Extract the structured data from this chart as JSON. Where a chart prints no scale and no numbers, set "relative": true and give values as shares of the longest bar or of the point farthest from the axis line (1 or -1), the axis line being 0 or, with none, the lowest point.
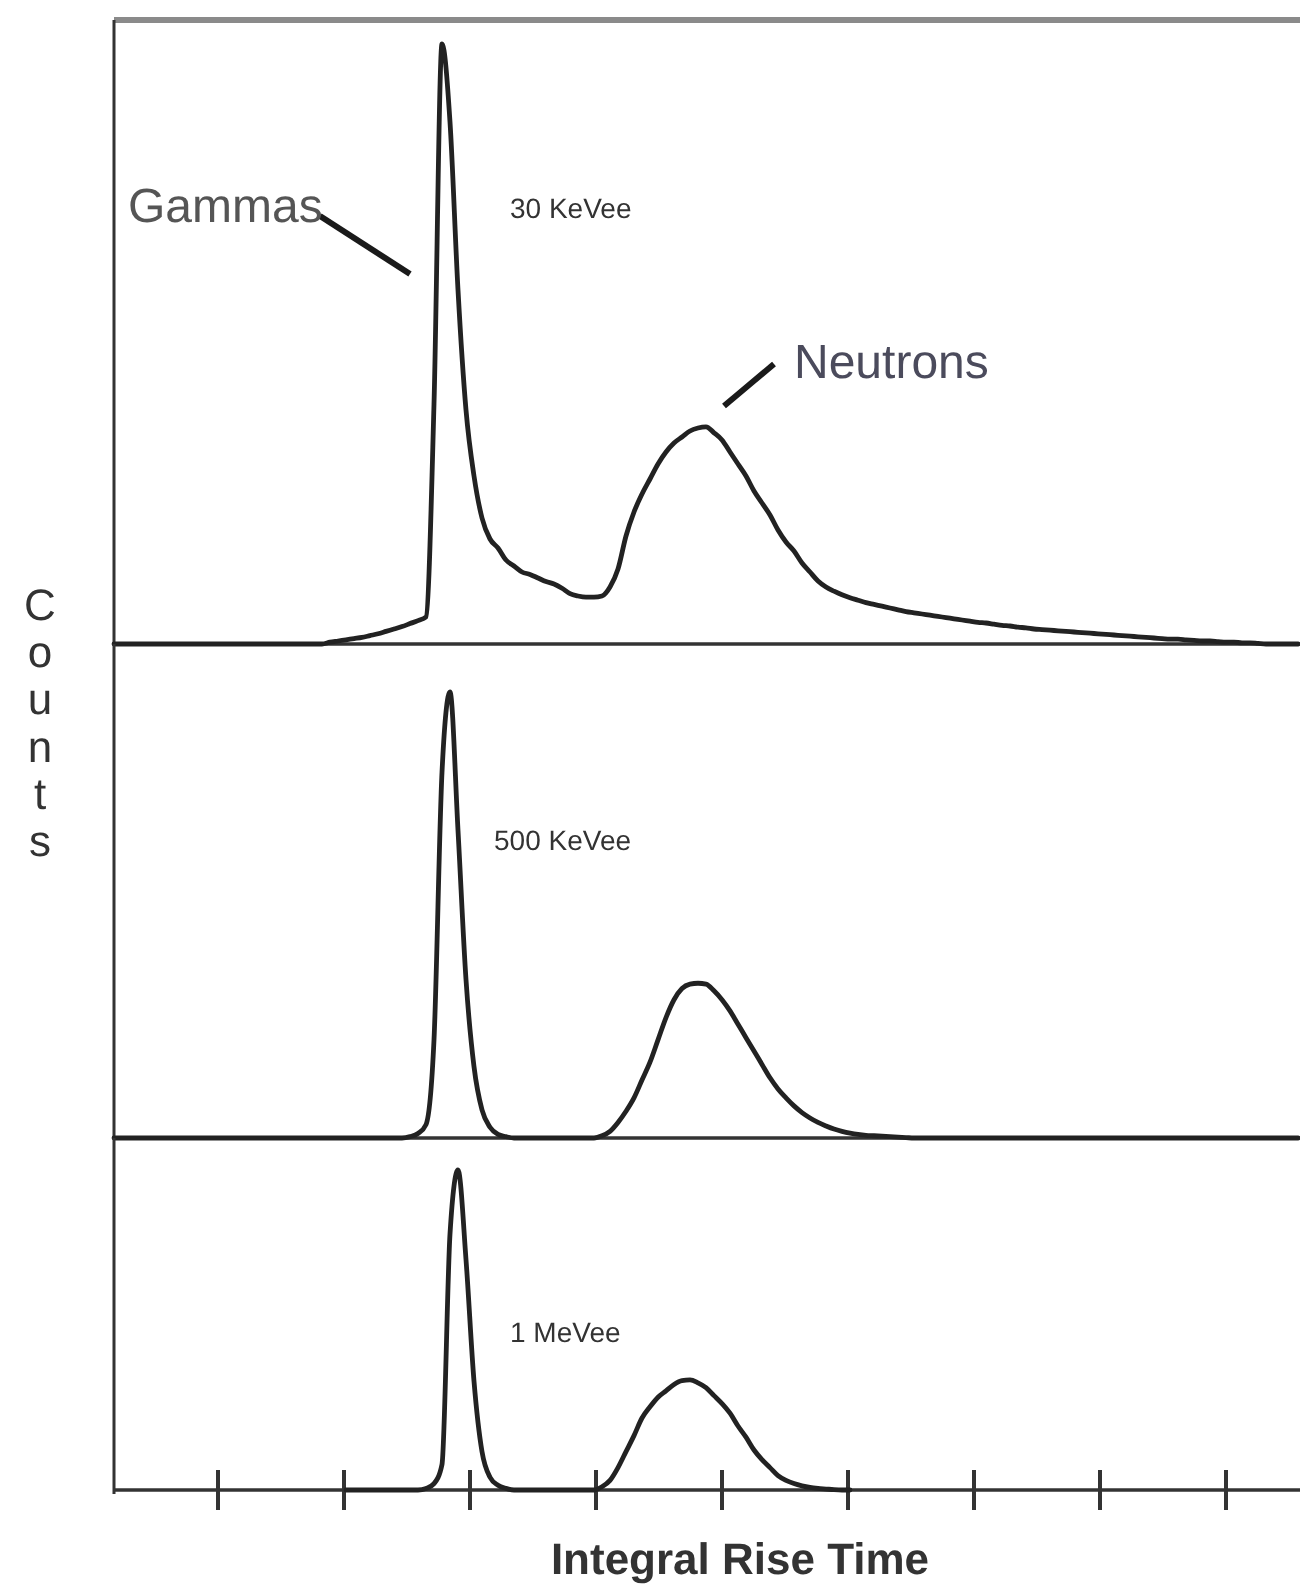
{
  "chart_data": [
    {
      "type": "line",
      "relative": true,
      "color": "#222222",
      "annotations": [
        "Gammas",
        "Neutrons",
        "30 KeVee"
      ],
      "categories": [
        null,
        null,
        null,
        null,
        null,
        null,
        null,
        null,
        null,
        null,
        null,
        null,
        null,
        null,
        null,
        null,
        null,
        null,
        null,
        null,
        null,
        null,
        null,
        null,
        null,
        null,
        null,
        null,
        null,
        null,
        null,
        null,
        null,
        null,
        null,
        null,
        null,
        null,
        null,
        null,
        null,
        null,
        null,
        null,
        null,
        null,
        null,
        null,
        null,
        null,
        null,
        null,
        null,
        null,
        null,
        null,
        null,
        null,
        null,
        null,
        null,
        null,
        null,
        null,
        null,
        null,
        null,
        null,
        null,
        null,
        null,
        null,
        null,
        null,
        null,
        null,
        null,
        null,
        null,
        null,
        null,
        null,
        null,
        null,
        null,
        null,
        null,
        null,
        null,
        null,
        null,
        null,
        null,
        null,
        null,
        null,
        null,
        null,
        null,
        null,
        null,
        null,
        null,
        null,
        null,
        null,
        null,
        null,
        null,
        null,
        null,
        null,
        null,
        null,
        null,
        null,
        null,
        null,
        null,
        null,
        null,
        null,
        null,
        null,
        null,
        null,
        null,
        null,
        null,
        null,
        null,
        null,
        null,
        null,
        null,
        null,
        null,
        null,
        null,
        null,
        null,
        null,
        null,
        null,
        null,
        null,
        null,
        null,
        null
      ],
      "values": [
        0,
        0,
        0,
        0,
        0,
        0,
        0,
        0,
        0,
        0,
        0,
        0,
        0,
        0,
        0,
        0,
        0,
        0,
        0,
        0,
        0,
        0,
        0,
        0,
        0,
        0,
        0,
        0.003,
        0.005,
        0.007,
        0.009,
        0.011,
        0.014,
        0.017,
        0.021,
        0.025,
        0.029,
        0.034,
        0.039,
        0.045,
        0.4,
        1,
        0.87,
        0.59,
        0.39,
        0.28,
        0.21,
        0.175,
        0.16,
        0.14,
        0.13,
        0.12,
        0.116,
        0.11,
        0.104,
        0.1,
        0.093,
        0.084,
        0.08,
        0.078,
        0.078,
        0.08,
        0.095,
        0.125,
        0.18,
        0.22,
        0.25,
        0.275,
        0.3,
        0.32,
        0.335,
        0.345,
        0.355,
        0.36,
        0.362,
        0.352,
        0.34,
        0.32,
        0.3,
        0.28,
        0.255,
        0.235,
        0.215,
        0.19,
        0.17,
        0.155,
        0.135,
        0.12,
        0.105,
        0.095,
        0.088,
        0.082,
        0.077,
        0.073,
        0.069,
        0.066,
        0.063,
        0.06,
        0.057,
        0.054,
        0.052,
        0.05,
        0.048,
        0.046,
        0.044,
        0.042,
        0.04,
        0.038,
        0.036,
        0.035,
        0.033,
        0.031,
        0.03,
        0.028,
        0.027,
        0.025,
        0.024,
        0.023,
        0.022,
        0.021,
        0.02,
        0.019,
        0.018,
        0.017,
        0.016,
        0.015,
        0.014,
        0.013,
        0.012,
        0.011,
        0.01,
        0.009,
        0.008,
        0.008,
        0.007,
        0.006,
        0.005,
        0.005,
        0.004,
        0.003,
        0.003,
        0.002,
        0.002,
        0.001,
        0,
        0,
        0,
        0,
        0
      ]
    },
    {
      "type": "line",
      "relative": true,
      "color": "#222222",
      "ylabel": "Counts",
      "annotations": [
        "500 KeVee"
      ],
      "categories": [
        null,
        null,
        null,
        null,
        null,
        null,
        null,
        null,
        null,
        null,
        null,
        null,
        null,
        null,
        null,
        null,
        null,
        null,
        null,
        null,
        null,
        null,
        null,
        null,
        null,
        null,
        null,
        null,
        null,
        null,
        null,
        null,
        null,
        null,
        null,
        null,
        null,
        null,
        null,
        null,
        null,
        null,
        null,
        null,
        null,
        null,
        null,
        null,
        null,
        null,
        null,
        null,
        null,
        null,
        null,
        null,
        null,
        null,
        null,
        null,
        null,
        null,
        null,
        null,
        null,
        null,
        null,
        null,
        null,
        null,
        null,
        null,
        null,
        null,
        null,
        null,
        null,
        null,
        null,
        null,
        null,
        null,
        null,
        null,
        null,
        null,
        null,
        null,
        null,
        null,
        null,
        null,
        null,
        null,
        null,
        null,
        null,
        null,
        null,
        null,
        null,
        null,
        null,
        null,
        null,
        null,
        null,
        null,
        null,
        null,
        null,
        null,
        null,
        null,
        null,
        null,
        null,
        null,
        null,
        null,
        null,
        null,
        null,
        null,
        null,
        null,
        null,
        null,
        null,
        null,
        null,
        null,
        null,
        null,
        null,
        null,
        null,
        null,
        null,
        null,
        null,
        null,
        null,
        null,
        null,
        null,
        null,
        null,
        null
      ],
      "values": [
        0,
        0,
        0,
        0,
        0,
        0,
        0,
        0,
        0,
        0,
        0,
        0,
        0,
        0,
        0,
        0,
        0,
        0,
        0,
        0,
        0,
        0,
        0,
        0,
        0,
        0,
        0,
        0,
        0,
        0,
        0,
        0,
        0,
        0,
        0,
        0,
        0,
        0.003,
        0.01,
        0.03,
        0.22,
        0.82,
        1,
        0.69,
        0.355,
        0.16,
        0.063,
        0.024,
        0.008,
        0.003,
        0,
        0,
        0,
        0,
        0,
        0,
        0,
        0,
        0,
        0,
        0,
        0.005,
        0.015,
        0.035,
        0.06,
        0.09,
        0.13,
        0.17,
        0.22,
        0.27,
        0.31,
        0.335,
        0.345,
        0.347,
        0.345,
        0.33,
        0.31,
        0.285,
        0.255,
        0.225,
        0.195,
        0.165,
        0.135,
        0.11,
        0.09,
        0.072,
        0.057,
        0.045,
        0.035,
        0.027,
        0.02,
        0.015,
        0.011,
        0.008,
        0.006,
        0.005,
        0.004,
        0.003,
        0.002,
        0.001,
        0,
        0,
        0,
        0,
        0,
        0,
        0,
        0,
        0,
        0,
        0,
        0,
        0,
        0,
        0,
        0,
        0,
        0,
        0,
        0,
        0,
        0,
        0,
        0,
        0,
        0,
        0,
        0,
        0,
        0,
        0,
        0,
        0,
        0,
        0,
        0,
        0,
        0,
        0,
        0,
        0,
        0,
        0,
        0,
        0,
        0,
        0,
        0,
        0
      ]
    },
    {
      "type": "line",
      "relative": true,
      "color": "#222222",
      "xlabel": "Integral Rise Time",
      "annotations": [
        "1 MeVee"
      ],
      "categories": [
        null,
        null,
        null,
        null,
        null,
        null,
        null,
        null,
        null,
        null,
        null,
        null,
        null,
        null,
        null,
        null,
        null,
        null,
        null,
        null,
        null,
        null,
        null,
        null,
        null,
        null,
        null,
        null,
        null,
        null,
        null,
        null,
        null,
        null,
        null,
        null,
        null,
        null,
        null,
        null,
        null,
        null,
        null,
        null,
        null,
        null,
        null,
        null,
        null,
        null,
        null,
        null,
        null,
        null,
        null,
        null,
        null,
        null,
        null,
        null,
        null,
        null,
        null,
        null,
        null,
        null,
        null,
        null,
        null,
        null,
        null,
        null,
        null,
        null,
        null,
        null,
        null,
        null,
        null,
        null,
        null,
        null,
        null,
        null,
        null,
        null,
        null,
        null,
        null,
        null,
        null,
        null,
        null,
        null,
        null,
        null,
        null,
        null,
        null,
        null,
        null,
        null,
        null,
        null,
        null,
        null,
        null,
        null,
        null,
        null,
        null,
        null,
        null,
        null,
        null,
        null,
        null,
        null,
        null,
        null,
        null,
        null,
        null,
        null,
        null,
        null,
        null,
        null,
        null,
        null,
        null,
        null,
        null,
        null,
        null,
        null,
        null,
        null,
        null,
        null,
        null,
        null,
        null,
        null,
        null,
        null,
        null,
        null,
        null
      ],
      "values": [
        null,
        null,
        null,
        null,
        null,
        null,
        null,
        null,
        null,
        null,
        null,
        null,
        null,
        null,
        null,
        null,
        null,
        null,
        null,
        null,
        null,
        null,
        null,
        null,
        null,
        null,
        null,
        null,
        null,
        0,
        0,
        0,
        0,
        0,
        0,
        0,
        0,
        0,
        0,
        0.005,
        0.02,
        0.08,
        0.8,
        1,
        0.72,
        0.34,
        0.12,
        0.04,
        0.015,
        0.005,
        0,
        0,
        0,
        0,
        0,
        0,
        0,
        0,
        0,
        0,
        0,
        0.01,
        0.03,
        0.07,
        0.12,
        0.17,
        0.225,
        0.26,
        0.29,
        0.31,
        0.33,
        0.342,
        0.344,
        0.335,
        0.32,
        0.295,
        0.27,
        0.24,
        0.2,
        0.165,
        0.125,
        0.095,
        0.07,
        0.045,
        0.03,
        0.02,
        0.013,
        0.008,
        0.005,
        0.003,
        0.001,
        0,
        0,
        null,
        null,
        null,
        null,
        null,
        null,
        null,
        null,
        null,
        null,
        null,
        null,
        null,
        null,
        null,
        null,
        null,
        null,
        null,
        null,
        null,
        null,
        null,
        null,
        null,
        null,
        null,
        null,
        null,
        null,
        null,
        null,
        null,
        null,
        null,
        null,
        null,
        null,
        null,
        null,
        null,
        null,
        null,
        null,
        null,
        null,
        null,
        null,
        null,
        null,
        null,
        null,
        null,
        null,
        null,
        null
      ]
    }
  ]
}
